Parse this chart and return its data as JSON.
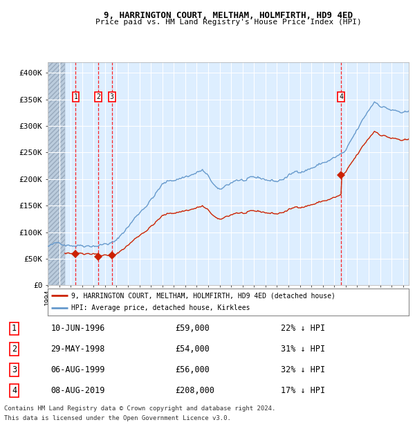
{
  "title1": "9, HARRINGTON COURT, MELTHAM, HOLMFIRTH, HD9 4ED",
  "title2": "Price paid vs. HM Land Registry's House Price Index (HPI)",
  "hpi_color": "#6699cc",
  "price_color": "#cc2200",
  "sale_marker_color": "#cc2200",
  "bg_color": "#ddeeff",
  "grid_color": "#ffffff",
  "hatch_color": "#aabbcc",
  "sale_events": [
    {
      "label": "1",
      "date_x": 1996.44,
      "price": 59000
    },
    {
      "label": "2",
      "date_x": 1998.41,
      "price": 54000
    },
    {
      "label": "3",
      "date_x": 1999.59,
      "price": 56000
    },
    {
      "label": "4",
      "date_x": 2019.59,
      "price": 208000
    }
  ],
  "ylabel_ticks": [
    "£0",
    "£50K",
    "£100K",
    "£150K",
    "£200K",
    "£250K",
    "£300K",
    "£350K",
    "£400K"
  ],
  "ytick_vals": [
    0,
    50000,
    100000,
    150000,
    200000,
    250000,
    300000,
    350000,
    400000
  ],
  "xmin": 1994.0,
  "xmax": 2025.5,
  "ymin": 0,
  "ymax": 420000,
  "hatch_end": 1995.5,
  "legend_line1": "9, HARRINGTON COURT, MELTHAM, HOLMFIRTH, HD9 4ED (detached house)",
  "legend_line2": "HPI: Average price, detached house, Kirklees",
  "footer1": "Contains HM Land Registry data © Crown copyright and database right 2024.",
  "footer2": "This data is licensed under the Open Government Licence v3.0.",
  "table_rows": [
    [
      "1",
      "10-JUN-1996",
      "£59,000",
      "22% ↓ HPI"
    ],
    [
      "2",
      "29-MAY-1998",
      "£54,000",
      "31% ↓ HPI"
    ],
    [
      "3",
      "06-AUG-1999",
      "£56,000",
      "32% ↓ HPI"
    ],
    [
      "4",
      "08-AUG-2019",
      "£208,000",
      "17% ↓ HPI"
    ]
  ]
}
